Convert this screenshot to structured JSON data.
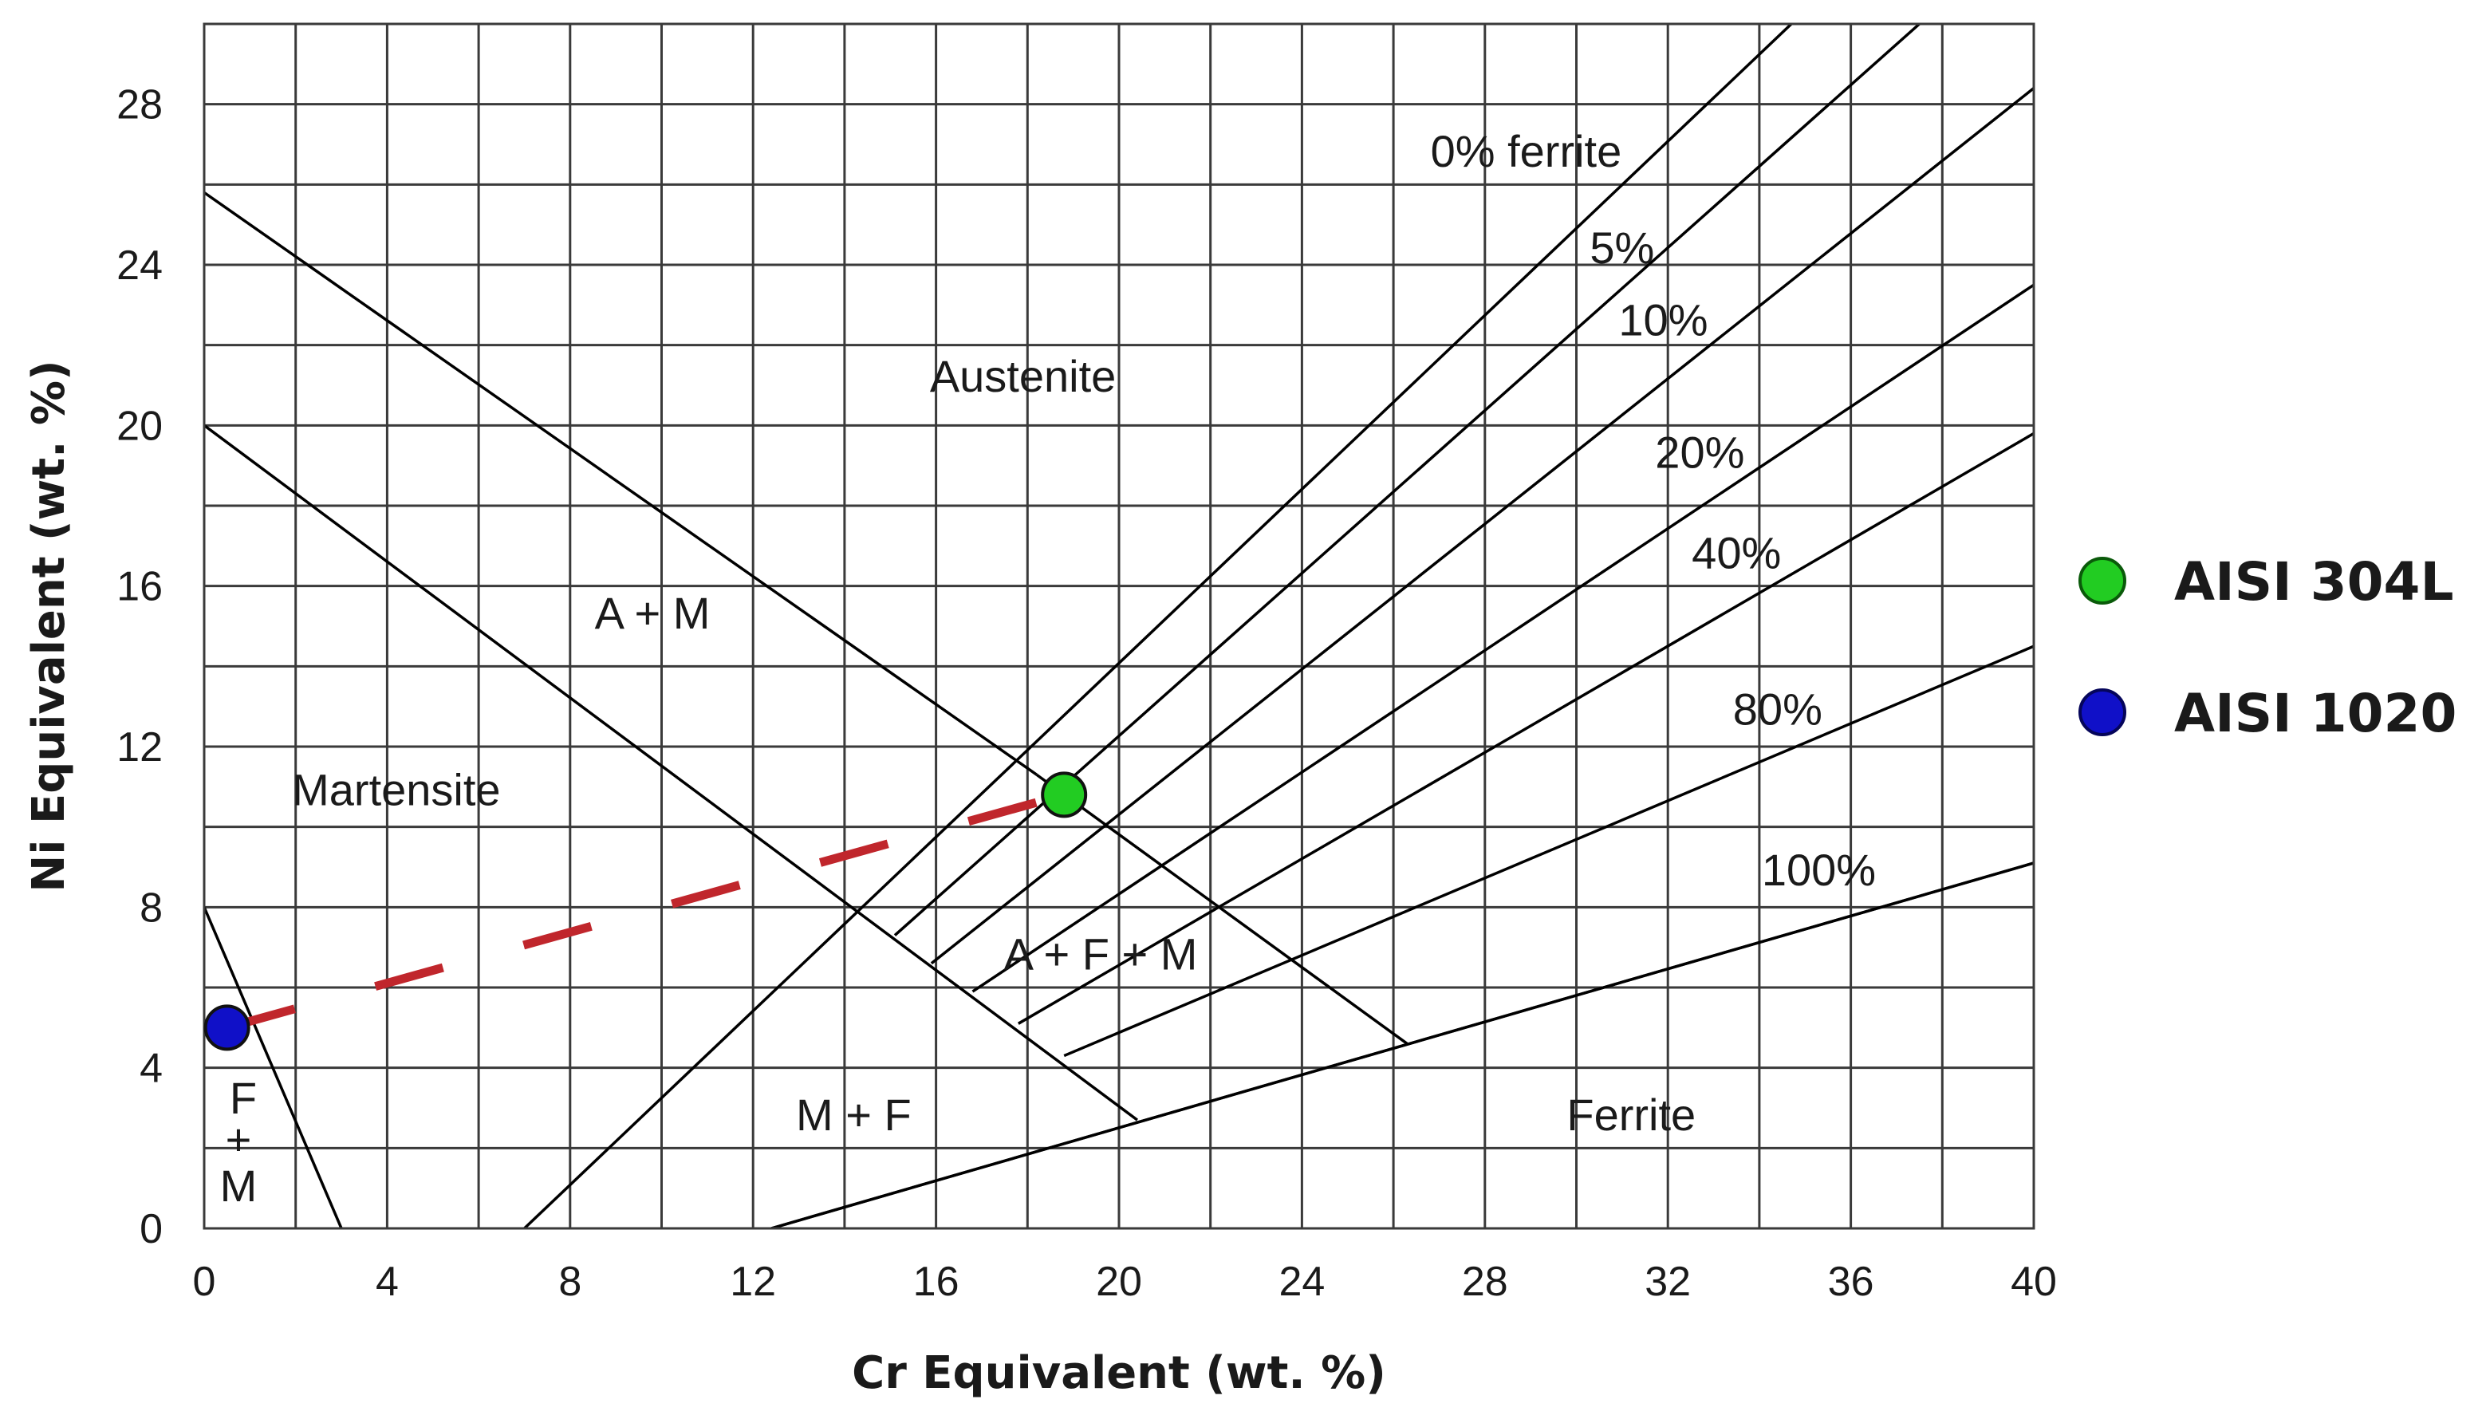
{
  "chart_data": {
    "type": "line",
    "title": "",
    "xlabel": "Cr Equivalent (wt. %)",
    "ylabel": "Ni Equivalent (wt. %)",
    "xlim": [
      0,
      40
    ],
    "ylim": [
      0,
      30
    ],
    "grid": true,
    "legend_placement": "right",
    "x_ticks": [
      0,
      4,
      8,
      12,
      16,
      20,
      24,
      28,
      32,
      36,
      40
    ],
    "y_ticks": [
      0,
      4,
      8,
      12,
      16,
      20,
      24,
      28
    ],
    "x_tick_labels": [
      "0",
      "4",
      "8",
      "12",
      "16",
      "20",
      "24",
      "28",
      "32",
      "36",
      "40"
    ],
    "y_tick_labels": [
      "0",
      "4",
      "8",
      "12",
      "16",
      "20",
      "24",
      "28"
    ],
    "boundary_lines": [
      {
        "id": "fm-boundary",
        "points": [
          [
            0,
            8
          ],
          [
            3,
            0
          ]
        ]
      },
      {
        "id": "austenite-martensite",
        "points": [
          [
            0,
            25.8
          ],
          [
            18.2,
            11.3
          ]
        ]
      },
      {
        "id": "am-upper-extension",
        "points": [
          [
            18.2,
            11.3
          ],
          [
            26.3,
            4.6
          ]
        ]
      },
      {
        "id": "martensite-lower",
        "points": [
          [
            0,
            20
          ],
          [
            20.4,
            2.7
          ]
        ]
      },
      {
        "id": "mf-boundary",
        "points": [
          [
            12.4,
            0
          ],
          [
            40,
            9.1
          ]
        ]
      }
    ],
    "ferrite_lines": [
      {
        "label": "0% ferrite",
        "points": [
          [
            7,
            0
          ],
          [
            34.7,
            30
          ]
        ]
      },
      {
        "label": "5%",
        "points": [
          [
            15.1,
            7.3
          ],
          [
            37.5,
            30
          ]
        ]
      },
      {
        "label": "10%",
        "points": [
          [
            15.9,
            6.6
          ],
          [
            40,
            28.4
          ]
        ]
      },
      {
        "label": "20%",
        "points": [
          [
            16.8,
            5.9
          ],
          [
            40,
            23.5
          ]
        ]
      },
      {
        "label": "40%",
        "points": [
          [
            17.8,
            5.1
          ],
          [
            40,
            19.8
          ]
        ]
      },
      {
        "label": "80%",
        "points": [
          [
            18.8,
            4.3
          ],
          [
            40,
            14.5
          ]
        ]
      },
      {
        "label": "100%",
        "points": [
          [
            12.4,
            0
          ],
          [
            40,
            9.1
          ]
        ]
      }
    ],
    "regions": [
      {
        "label": "Austenite",
        "x": 17.9,
        "y": 21.2
      },
      {
        "label": "A + M",
        "x": 9.8,
        "y": 15.3
      },
      {
        "label": "Martensite",
        "x": 4.2,
        "y": 10.9
      },
      {
        "label": "A + F + M",
        "x": 19.6,
        "y": 6.8
      },
      {
        "label": "M + F",
        "x": 14.2,
        "y": 2.8
      },
      {
        "label": "Ferrite",
        "x": 31.2,
        "y": 2.8
      }
    ],
    "fm_region_lines": [
      "F",
      "+",
      "M"
    ],
    "ferrite_line_label_positions": [
      {
        "label": "0% ferrite",
        "x": 28.9,
        "y": 26.8
      },
      {
        "label": "5%",
        "x": 31.0,
        "y": 24.4
      },
      {
        "label": "10%",
        "x": 31.9,
        "y": 22.6
      },
      {
        "label": "20%",
        "x": 32.7,
        "y": 19.3
      },
      {
        "label": "40%",
        "x": 33.5,
        "y": 16.8
      },
      {
        "label": "80%",
        "x": 34.4,
        "y": 12.9
      },
      {
        "label": "100%",
        "x": 35.3,
        "y": 8.9
      }
    ],
    "series": [
      {
        "name": "AISI 304L",
        "color": "#22cc22",
        "values": [
          [
            18.8,
            10.8
          ]
        ]
      },
      {
        "name": "AISI 1020",
        "color": "#1010c8",
        "values": [
          [
            0.5,
            5.0
          ]
        ]
      }
    ],
    "tie_line": {
      "color": "#c0262c",
      "points": [
        [
          0.5,
          5.0
        ],
        [
          18.8,
          10.8
        ]
      ]
    }
  }
}
